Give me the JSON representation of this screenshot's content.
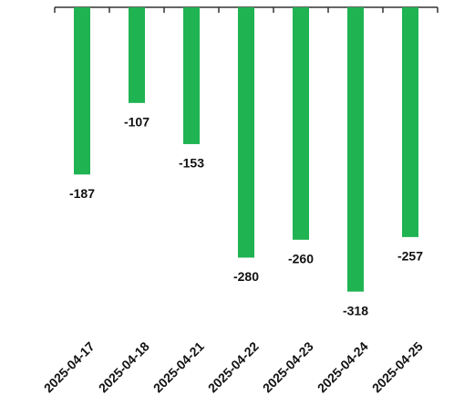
{
  "chart_data": {
    "type": "bar",
    "categories": [
      "2025-04-17",
      "2025-04-18",
      "2025-04-21",
      "2025-04-22",
      "2025-04-23",
      "2025-04-24",
      "2025-04-25"
    ],
    "values": [
      -187,
      -107,
      -153,
      -280,
      -260,
      -318,
      -257
    ],
    "color": "#1fb352",
    "ylim": [
      -350,
      0
    ]
  }
}
